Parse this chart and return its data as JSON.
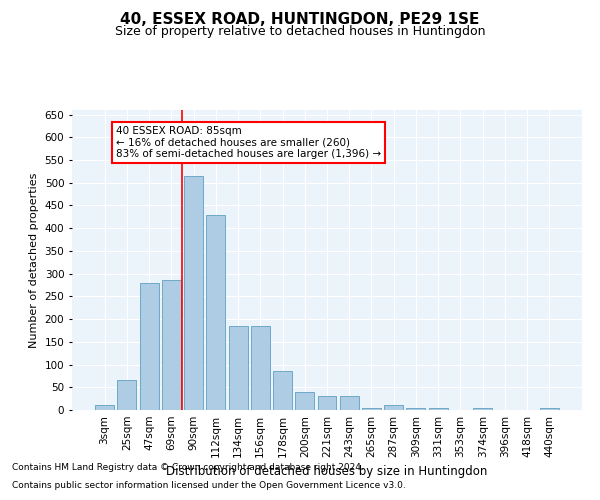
{
  "title1": "40, ESSEX ROAD, HUNTINGDON, PE29 1SE",
  "title2": "Size of property relative to detached houses in Huntingdon",
  "xlabel": "Distribution of detached houses by size in Huntingdon",
  "ylabel": "Number of detached properties",
  "categories": [
    "3sqm",
    "25sqm",
    "47sqm",
    "69sqm",
    "90sqm",
    "112sqm",
    "134sqm",
    "156sqm",
    "178sqm",
    "200sqm",
    "221sqm",
    "243sqm",
    "265sqm",
    "287sqm",
    "309sqm",
    "331sqm",
    "353sqm",
    "374sqm",
    "396sqm",
    "418sqm",
    "440sqm"
  ],
  "values": [
    10,
    65,
    280,
    285,
    515,
    430,
    185,
    185,
    85,
    40,
    30,
    30,
    5,
    10,
    5,
    5,
    0,
    5,
    0,
    0,
    5
  ],
  "bar_color": "#AECCE4",
  "bar_edge_color": "#6FA8C8",
  "red_line_index": 4,
  "annotation_text": "40 ESSEX ROAD: 85sqm\n← 16% of detached houses are smaller (260)\n83% of semi-detached houses are larger (1,396) →",
  "annotation_box_color": "white",
  "annotation_box_edge": "red",
  "ylim": [
    0,
    660
  ],
  "yticks": [
    0,
    50,
    100,
    150,
    200,
    250,
    300,
    350,
    400,
    450,
    500,
    550,
    600,
    650
  ],
  "background_color": "#EBF3FB",
  "grid_color": "white",
  "footer1": "Contains HM Land Registry data © Crown copyright and database right 2024.",
  "footer2": "Contains public sector information licensed under the Open Government Licence v3.0.",
  "title_fontsize": 11,
  "subtitle_fontsize": 9,
  "axis_label_fontsize": 8.5,
  "tick_fontsize": 7.5,
  "ylabel_fontsize": 8
}
